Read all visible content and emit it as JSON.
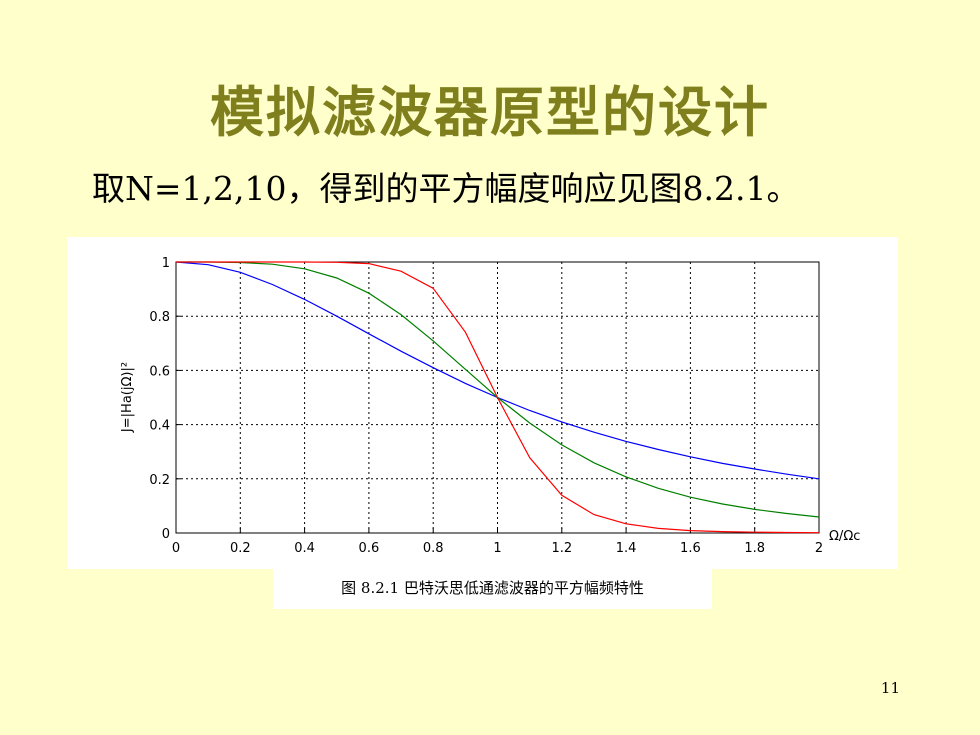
{
  "slide": {
    "title": "模拟滤波器原型的设计",
    "body_text": "取N=1,2,10，得到的平方幅度响应见图8.2.1。",
    "figure_caption": "图 8.2.1  巴特沃思低通滤波器的平方幅频特性",
    "page_number": "11"
  },
  "chart_data": {
    "type": "line",
    "ylabel": "J=|Ha(jΩ)|²",
    "xlabel": "Ω/Ωc",
    "xlim": [
      0,
      2
    ],
    "ylim": [
      0,
      1
    ],
    "xticks": [
      "0",
      "0.2",
      "0.4",
      "0.6",
      "0.8",
      "1",
      "1.2",
      "1.4",
      "1.6",
      "1.8",
      "2"
    ],
    "yticks": [
      "0",
      "0.2",
      "0.4",
      "0.6",
      "0.8",
      "1"
    ],
    "grid": true,
    "x": [
      0,
      0.1,
      0.2,
      0.3,
      0.4,
      0.5,
      0.6,
      0.7,
      0.8,
      0.9,
      1.0,
      1.1,
      1.2,
      1.3,
      1.4,
      1.5,
      1.6,
      1.7,
      1.8,
      1.9,
      2.0
    ],
    "series": [
      {
        "color": "#0000FF",
        "values": [
          1,
          0.99,
          0.962,
          0.917,
          0.862,
          0.8,
          0.735,
          0.671,
          0.61,
          0.552,
          0.5,
          0.452,
          0.41,
          0.372,
          0.338,
          0.308,
          0.281,
          0.257,
          0.236,
          0.217,
          0.2
        ]
      },
      {
        "color": "#008000",
        "values": [
          1,
          1.0,
          0.998,
          0.992,
          0.975,
          0.941,
          0.885,
          0.806,
          0.709,
          0.604,
          0.5,
          0.406,
          0.325,
          0.259,
          0.207,
          0.165,
          0.132,
          0.107,
          0.087,
          0.072,
          0.059
        ]
      },
      {
        "color": "#FF0000",
        "values": [
          1,
          1,
          1,
          1,
          1,
          0.999,
          0.994,
          0.966,
          0.903,
          0.741,
          0.5,
          0.278,
          0.139,
          0.068,
          0.034,
          0.017,
          0.009,
          0.005,
          0.003,
          0.002,
          0.001
        ]
      }
    ]
  }
}
